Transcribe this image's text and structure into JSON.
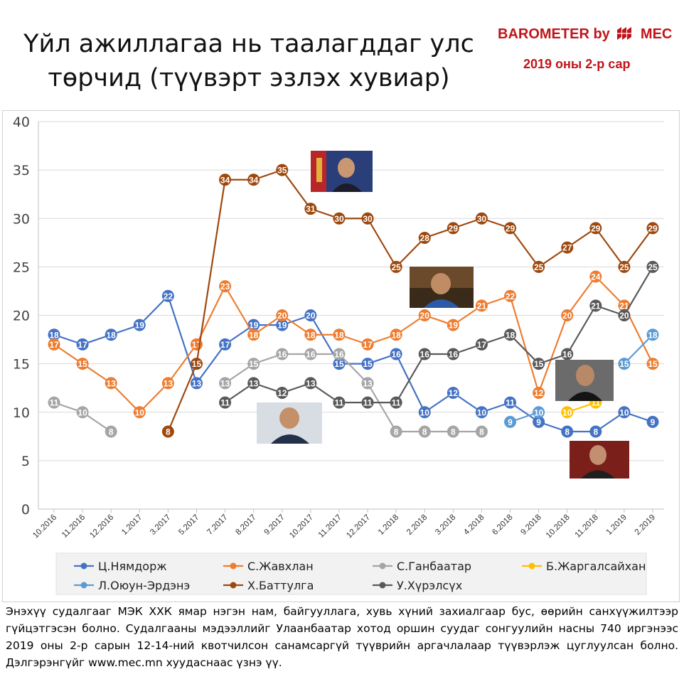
{
  "header": {
    "title_line1": "Үйл ажиллагаа нь таалагддаг улс",
    "title_line2": "төрчид (түүвэрт эзлэх хувиар)",
    "brand_prefix": "BAROMETER by",
    "brand_suffix": "MEC",
    "date_label": "2019 оны 2-р сар"
  },
  "colors": {
    "brand": "#c0141a"
  },
  "chart_data": {
    "type": "line",
    "title": "Үйл ажиллагаа нь таалагддаг улс төрчид (түүвэрт эзлэх хувиар)",
    "categories": [
      "10.2016",
      "11.2016",
      "12.2016",
      "1.2017",
      "3.2017",
      "5.2017",
      "7.2017",
      "8.2017",
      "9.2017",
      "10.2017",
      "11.2017",
      "12.2017",
      "1.2018",
      "2.2018",
      "3.2018",
      "4.2018",
      "6.2018",
      "9.2018",
      "10.2018",
      "11.2018",
      "1.2019",
      "2.2019"
    ],
    "ylim": [
      0,
      40
    ],
    "yticks": [
      "0",
      "5",
      "10",
      "15",
      "20",
      "25",
      "30",
      "35",
      "40"
    ],
    "grid": true,
    "legend_position": "bottom",
    "data_labels": true,
    "series": [
      {
        "name": "Ц.Нямдорж",
        "color": "#4472c4",
        "values": [
          18,
          17,
          18,
          19,
          22,
          13,
          17,
          19,
          19,
          20,
          15,
          15,
          16,
          10,
          12,
          10,
          11,
          9,
          8,
          8,
          10,
          9
        ]
      },
      {
        "name": "С.Жавхлан",
        "color": "#ed7d31",
        "values": [
          17,
          15,
          13,
          10,
          13,
          17,
          23,
          18,
          20,
          18,
          18,
          17,
          18,
          20,
          19,
          21,
          22,
          12,
          20,
          24,
          21,
          15
        ]
      },
      {
        "name": "С.Ганбаатар",
        "color": "#a5a5a5",
        "values": [
          11,
          10,
          8,
          null,
          null,
          null,
          13,
          15,
          16,
          16,
          16,
          13,
          8,
          8,
          8,
          8,
          null,
          null,
          null,
          null,
          null,
          null
        ]
      },
      {
        "name": "Б.Жаргалсайхан",
        "color": "#ffc000",
        "values": [
          null,
          null,
          null,
          null,
          null,
          null,
          null,
          null,
          null,
          null,
          null,
          null,
          null,
          null,
          null,
          null,
          null,
          null,
          10,
          11,
          null,
          null
        ]
      },
      {
        "name": "Л.Оюун-Эрдэнэ",
        "color": "#5b9bd5",
        "values": [
          null,
          null,
          null,
          null,
          null,
          null,
          null,
          null,
          null,
          null,
          null,
          null,
          null,
          null,
          null,
          null,
          9,
          10,
          null,
          null,
          15,
          18
        ]
      },
      {
        "name": "Х.Баттулга",
        "color": "#9e480e",
        "values": [
          null,
          null,
          null,
          null,
          8,
          15,
          34,
          34,
          35,
          31,
          30,
          30,
          25,
          28,
          29,
          30,
          29,
          25,
          27,
          29,
          25,
          29
        ]
      },
      {
        "name": "У.Хүрэлсүх",
        "color": "#595959",
        "values": [
          null,
          null,
          null,
          null,
          null,
          null,
          11,
          13,
          12,
          13,
          11,
          11,
          11,
          16,
          16,
          17,
          18,
          15,
          16,
          21,
          20,
          25
        ]
      }
    ]
  },
  "footnote": "Энэхүү судалгааг МЭК ХХК ямар нэгэн нам, байгууллага, хувь хүний захиалгаар бус, өөрийн санхүүжилтээр гүйцэтгэсэн болно. Судалгааны мэдээллийг Улаанбаатар хотод оршин суудаг сонгуулийн насны 740 иргэнээс 2019 оны 2-р сарын 12-14-ний квотчилсон санамсаргүй түүврийн аргачлалаар түүвэрлэж цуглуулсан болно. Дэлгэрэнгүйг www.mec.mn хуудаснаас үзнэ үү."
}
